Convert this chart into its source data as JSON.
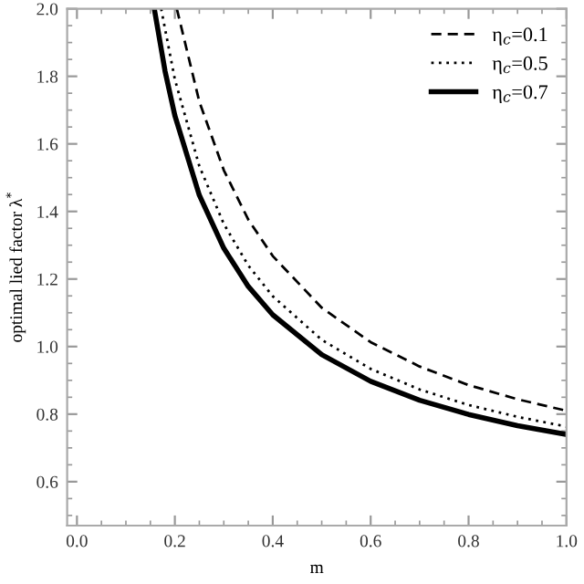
{
  "chart_data": {
    "type": "line",
    "xlabel": "m",
    "ylabel": "optimal lied factor λ$^{*}$",
    "xlim": [
      -0.02,
      1.0
    ],
    "ylim": [
      0.47,
      2.0
    ],
    "xticks": [
      {
        "value": 0,
        "label": "0.0"
      },
      {
        "value": 0.2,
        "label": "0.2"
      },
      {
        "value": 0.4,
        "label": "0.4"
      },
      {
        "value": 0.6,
        "label": "0.6"
      },
      {
        "value": 0.8,
        "label": "0.8"
      },
      {
        "value": 1.0,
        "label": "1.0"
      }
    ],
    "yticks": [
      0.6,
      0.8,
      {
        "value": 1.0,
        "label": "1.0"
      },
      1.2,
      1.4,
      1.6,
      1.8,
      {
        "value": 2.0,
        "label": "2.0"
      }
    ],
    "legend": "top right",
    "grid": false,
    "series": [
      {
        "name": "η$_{c}$=0.1",
        "color": "#000000",
        "line_style": "dashed",
        "x": [
          0.204,
          0.25,
          0.3,
          0.35,
          0.4,
          0.5,
          0.6,
          0.7,
          0.8,
          0.9,
          1.0
        ],
        "values": [
          2.0,
          1.725,
          1.522,
          1.376,
          1.268,
          1.115,
          1.013,
          0.941,
          0.886,
          0.844,
          0.81
        ]
      },
      {
        "name": "η$_{c}$=0.5",
        "color": "#000000",
        "line_style": "dotted",
        "x": [
          0.172,
          0.2,
          0.25,
          0.3,
          0.35,
          0.4,
          0.5,
          0.6,
          0.7,
          0.8,
          0.9,
          1.0
        ],
        "values": [
          2.0,
          1.791,
          1.534,
          1.363,
          1.24,
          1.149,
          1.02,
          0.934,
          0.873,
          0.827,
          0.792,
          0.763
        ]
      },
      {
        "name": "η$_{c}$=0.7",
        "color": "#000000",
        "line_style": "solid",
        "x": [
          0.158,
          0.18,
          0.2,
          0.25,
          0.3,
          0.35,
          0.4,
          0.5,
          0.6,
          0.7,
          0.8,
          0.9,
          1.0
        ],
        "values": [
          2.0,
          1.815,
          1.684,
          1.448,
          1.291,
          1.178,
          1.094,
          0.976,
          0.897,
          0.841,
          0.799,
          0.766,
          0.74
        ]
      }
    ]
  }
}
